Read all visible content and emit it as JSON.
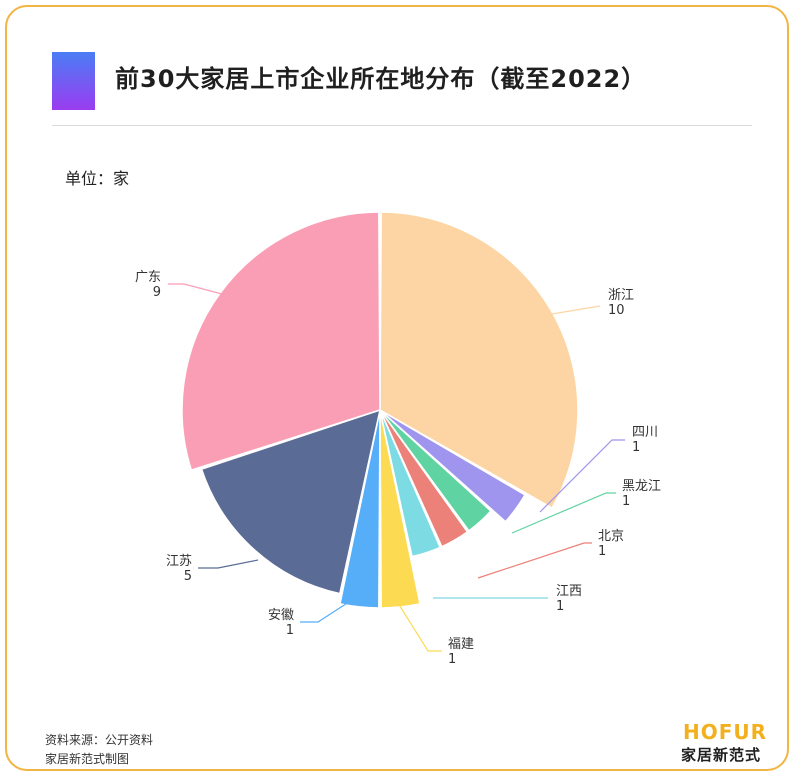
{
  "header": {
    "title": "前30大家居上市企业所在地分布（截至2022）",
    "unit": "单位：家"
  },
  "footer": {
    "source": "资料来源：公开资料",
    "made_by": "家居新范式制图"
  },
  "brand": {
    "en": "HOFUR",
    "cn": "家居新范式"
  },
  "colors": {
    "border": "#f2b544",
    "title_mark_top": "#4a7df5",
    "title_mark_bottom": "#9b3cf0"
  },
  "chart_data": {
    "type": "pie",
    "unit": "家",
    "slices": [
      {
        "name": "浙江",
        "value": 10,
        "color": "#fdd5a4"
      },
      {
        "name": "四川",
        "value": 1,
        "color": "#9f95ee"
      },
      {
        "name": "黑龙江",
        "value": 1,
        "color": "#5fd3a1"
      },
      {
        "name": "北京",
        "value": 1,
        "color": "#ec8179"
      },
      {
        "name": "江西",
        "value": 1,
        "color": "#7ddbe3"
      },
      {
        "name": "福建",
        "value": 1,
        "color": "#fcdb53"
      },
      {
        "name": "安徽",
        "value": 1,
        "color": "#56aef8"
      },
      {
        "name": "江苏",
        "value": 5,
        "color": "#5a6c95"
      },
      {
        "name": "广东",
        "value": 9,
        "color": "#fa9eb6"
      }
    ]
  }
}
